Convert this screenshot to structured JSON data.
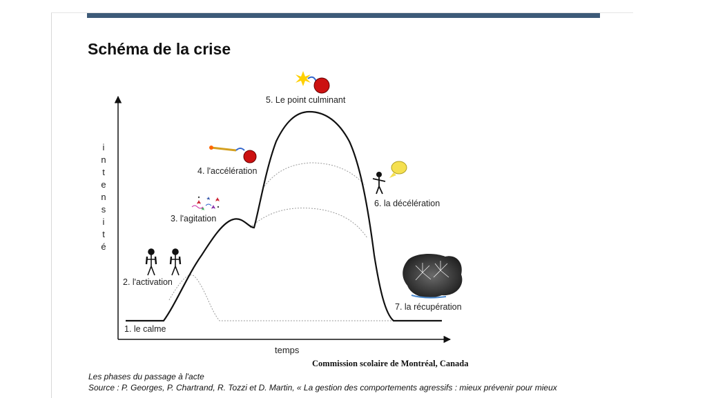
{
  "slide": {
    "title": "Schéma de la crise",
    "credit": "Commission scolaire de Montréal, Canada",
    "caption_line1": "Les phases du passage à l'acte",
    "caption_line2": "Source : P. Georges, P. Chartrand, R. Tozzi et D. Martin, « La gestion des comportements agressifs : mieux prévenir pour mieux"
  },
  "diagram": {
    "y_axis_label": [
      "i",
      "n",
      "t",
      "e",
      "n",
      "s",
      "i",
      "t",
      "é"
    ],
    "x_axis_label": "temps",
    "phases": [
      {
        "label": "1. le calme"
      },
      {
        "label": "2. l'activation"
      },
      {
        "label": "3. l'agitation"
      },
      {
        "label": "4. l'accélération"
      },
      {
        "label": "5. Le point culminant"
      },
      {
        "label": "6. la décélération"
      },
      {
        "label": "7. la récupération"
      }
    ]
  },
  "colors": {
    "accent_bar": "#3d5a78",
    "main_curve": "#111111",
    "dotted_curves": "#9a9a9a",
    "bomb": "#cc1111"
  },
  "icons": [
    "figures-icon",
    "stars-icon",
    "lit-fuse-icon",
    "bomb-icon",
    "speech-bubble-icon",
    "explosion-icon"
  ]
}
